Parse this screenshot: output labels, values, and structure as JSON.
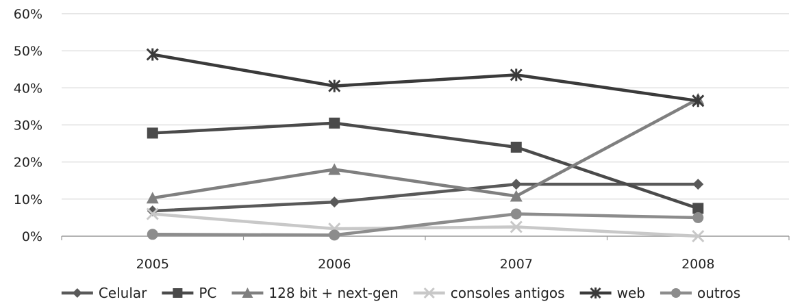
{
  "chart_data": {
    "type": "line",
    "title": "",
    "xlabel": "",
    "ylabel": "",
    "categories": [
      "2005",
      "2006",
      "2007",
      "2008"
    ],
    "ylim": [
      0,
      60
    ],
    "yticks": [
      0,
      10,
      20,
      30,
      40,
      50,
      60
    ],
    "ytick_labels": [
      "0%",
      "10%",
      "20%",
      "30%",
      "40%",
      "50%",
      "60%"
    ],
    "grid": "horizontal",
    "legend_position": "bottom",
    "series": [
      {
        "name": "Celular",
        "values": [
          6.8,
          9.2,
          14.0,
          14.0
        ],
        "color": "#595959",
        "marker": "diamond"
      },
      {
        "name": "PC",
        "values": [
          27.8,
          30.5,
          24.0,
          7.5
        ],
        "color": "#4a4a4a",
        "marker": "square"
      },
      {
        "name": "128 bit + next-gen",
        "values": [
          10.3,
          18.0,
          10.8,
          37.0
        ],
        "color": "#7f7f7f",
        "marker": "triangle"
      },
      {
        "name": "consoles antigos",
        "values": [
          6.0,
          2.0,
          2.5,
          0.0
        ],
        "color": "#c8c8c8",
        "marker": "x"
      },
      {
        "name": "web",
        "values": [
          49.0,
          40.5,
          43.5,
          36.5
        ],
        "color": "#3a3a3a",
        "marker": "asterisk"
      },
      {
        "name": "outros",
        "values": [
          0.5,
          0.3,
          6.0,
          5.0
        ],
        "color": "#8c8c8c",
        "marker": "circle"
      }
    ]
  }
}
